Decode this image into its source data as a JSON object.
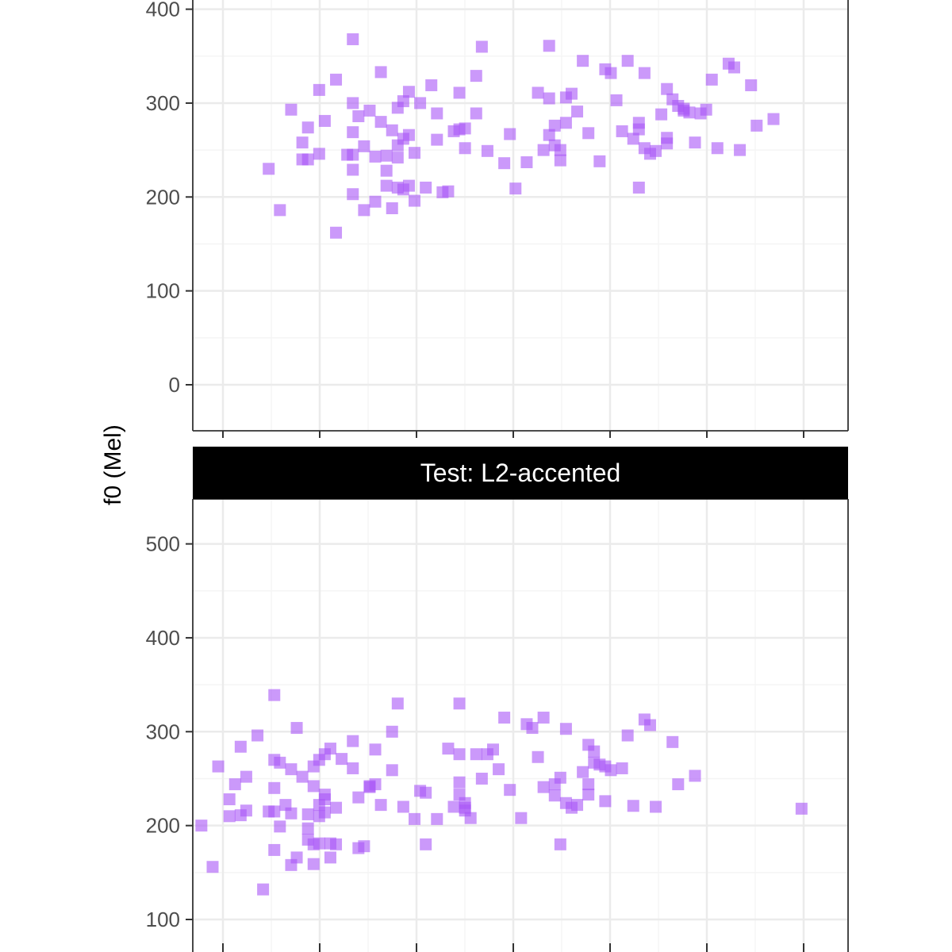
{
  "colors": {
    "point": "#a855f7",
    "strip_bg": "#000000",
    "strip_text": "#ffffff",
    "grid_major": "#ebebeb",
    "grid_minor": "#f5f5f5",
    "panel_border": "#333333",
    "tick_text": "#4d4d4d"
  },
  "chart_data": {
    "type": "scatter",
    "ylabel": "f0 (Mel)",
    "marker": "square",
    "grid": true,
    "facets": [
      {
        "name": "",
        "ylim": [
          -50,
          410
        ],
        "yticks": [
          0,
          100,
          200,
          300,
          400
        ],
        "x_gridlines": 7,
        "points": [
          [
            0.1,
            230
          ],
          [
            0.12,
            186
          ],
          [
            0.14,
            293
          ],
          [
            0.16,
            258
          ],
          [
            0.16,
            240
          ],
          [
            0.17,
            274
          ],
          [
            0.17,
            240
          ],
          [
            0.19,
            314
          ],
          [
            0.19,
            246
          ],
          [
            0.2,
            281
          ],
          [
            0.22,
            325
          ],
          [
            0.22,
            162
          ],
          [
            0.24,
            245
          ],
          [
            0.25,
            368
          ],
          [
            0.25,
            245
          ],
          [
            0.25,
            229
          ],
          [
            0.25,
            203
          ],
          [
            0.25,
            269
          ],
          [
            0.25,
            300
          ],
          [
            0.26,
            286
          ],
          [
            0.27,
            254
          ],
          [
            0.27,
            186
          ],
          [
            0.28,
            292
          ],
          [
            0.29,
            243
          ],
          [
            0.29,
            195
          ],
          [
            0.3,
            333
          ],
          [
            0.3,
            280
          ],
          [
            0.31,
            228
          ],
          [
            0.31,
            212
          ],
          [
            0.31,
            244
          ],
          [
            0.32,
            271
          ],
          [
            0.32,
            188
          ],
          [
            0.33,
            295
          ],
          [
            0.33,
            242
          ],
          [
            0.33,
            255
          ],
          [
            0.33,
            210
          ],
          [
            0.34,
            302
          ],
          [
            0.34,
            208
          ],
          [
            0.34,
            262
          ],
          [
            0.35,
            312
          ],
          [
            0.35,
            266
          ],
          [
            0.35,
            212
          ],
          [
            0.36,
            247
          ],
          [
            0.36,
            196
          ],
          [
            0.37,
            300
          ],
          [
            0.38,
            210
          ],
          [
            0.39,
            319
          ],
          [
            0.4,
            289
          ],
          [
            0.4,
            261
          ],
          [
            0.41,
            205
          ],
          [
            0.42,
            206
          ],
          [
            0.43,
            270
          ],
          [
            0.44,
            272
          ],
          [
            0.44,
            311
          ],
          [
            0.45,
            273
          ],
          [
            0.45,
            252
          ],
          [
            0.47,
            329
          ],
          [
            0.47,
            289
          ],
          [
            0.48,
            360
          ],
          [
            0.49,
            249
          ],
          [
            0.52,
            236
          ],
          [
            0.53,
            267
          ],
          [
            0.54,
            209
          ],
          [
            0.56,
            237
          ],
          [
            0.58,
            311
          ],
          [
            0.59,
            250
          ],
          [
            0.6,
            361
          ],
          [
            0.6,
            305
          ],
          [
            0.6,
            266
          ],
          [
            0.61,
            276
          ],
          [
            0.61,
            255
          ],
          [
            0.62,
            239
          ],
          [
            0.62,
            250
          ],
          [
            0.63,
            279
          ],
          [
            0.63,
            306
          ],
          [
            0.64,
            310
          ],
          [
            0.65,
            291
          ],
          [
            0.66,
            345
          ],
          [
            0.67,
            268
          ],
          [
            0.69,
            238
          ],
          [
            0.7,
            336
          ],
          [
            0.71,
            332
          ],
          [
            0.72,
            303
          ],
          [
            0.73,
            270
          ],
          [
            0.74,
            345
          ],
          [
            0.75,
            262
          ],
          [
            0.76,
            272
          ],
          [
            0.76,
            210
          ],
          [
            0.76,
            279
          ],
          [
            0.77,
            332
          ],
          [
            0.77,
            252
          ],
          [
            0.78,
            246
          ],
          [
            0.79,
            249
          ],
          [
            0.8,
            288
          ],
          [
            0.81,
            257
          ],
          [
            0.81,
            263
          ],
          [
            0.81,
            315
          ],
          [
            0.82,
            304
          ],
          [
            0.83,
            297
          ],
          [
            0.84,
            292
          ],
          [
            0.84,
            294
          ],
          [
            0.85,
            290
          ],
          [
            0.86,
            258
          ],
          [
            0.87,
            289
          ],
          [
            0.88,
            293
          ],
          [
            0.89,
            325
          ],
          [
            0.9,
            252
          ],
          [
            0.92,
            342
          ],
          [
            0.93,
            338
          ],
          [
            0.94,
            250
          ],
          [
            0.96,
            319
          ],
          [
            0.97,
            276
          ],
          [
            1.0,
            283
          ]
        ]
      },
      {
        "name": "Test: L2-accented",
        "ylim": [
          93,
          520
        ],
        "yticks": [
          100,
          200,
          300,
          400,
          500
        ],
        "x_gridlines": 7,
        "points": [
          [
            -0.02,
            200
          ],
          [
            0.0,
            156
          ],
          [
            0.01,
            263
          ],
          [
            0.03,
            228
          ],
          [
            0.03,
            210
          ],
          [
            0.04,
            244
          ],
          [
            0.05,
            211
          ],
          [
            0.05,
            284
          ],
          [
            0.06,
            216
          ],
          [
            0.06,
            252
          ],
          [
            0.08,
            296
          ],
          [
            0.09,
            132
          ],
          [
            0.1,
            215
          ],
          [
            0.11,
            240
          ],
          [
            0.11,
            339
          ],
          [
            0.11,
            215
          ],
          [
            0.11,
            174
          ],
          [
            0.11,
            270
          ],
          [
            0.12,
            199
          ],
          [
            0.12,
            267
          ],
          [
            0.13,
            222
          ],
          [
            0.14,
            213
          ],
          [
            0.14,
            158
          ],
          [
            0.14,
            260
          ],
          [
            0.15,
            166
          ],
          [
            0.15,
            304
          ],
          [
            0.16,
            252
          ],
          [
            0.17,
            197
          ],
          [
            0.17,
            185
          ],
          [
            0.17,
            212
          ],
          [
            0.18,
            242
          ],
          [
            0.18,
            159
          ],
          [
            0.18,
            263
          ],
          [
            0.18,
            180
          ],
          [
            0.19,
            222
          ],
          [
            0.19,
            181
          ],
          [
            0.19,
            210
          ],
          [
            0.19,
            270
          ],
          [
            0.2,
            233
          ],
          [
            0.2,
            276
          ],
          [
            0.2,
            214
          ],
          [
            0.2,
            228
          ],
          [
            0.21,
            282
          ],
          [
            0.21,
            181
          ],
          [
            0.21,
            166
          ],
          [
            0.22,
            219
          ],
          [
            0.22,
            180
          ],
          [
            0.23,
            271
          ],
          [
            0.25,
            290
          ],
          [
            0.25,
            261
          ],
          [
            0.26,
            230
          ],
          [
            0.26,
            176
          ],
          [
            0.27,
            178
          ],
          [
            0.28,
            242
          ],
          [
            0.28,
            241
          ],
          [
            0.29,
            281
          ],
          [
            0.29,
            244
          ],
          [
            0.3,
            222
          ],
          [
            0.32,
            300
          ],
          [
            0.32,
            259
          ],
          [
            0.33,
            330
          ],
          [
            0.34,
            220
          ],
          [
            0.36,
            207
          ],
          [
            0.37,
            237
          ],
          [
            0.38,
            235
          ],
          [
            0.38,
            180
          ],
          [
            0.4,
            207
          ],
          [
            0.42,
            282
          ],
          [
            0.43,
            220
          ],
          [
            0.44,
            330
          ],
          [
            0.44,
            276
          ],
          [
            0.44,
            246
          ],
          [
            0.44,
            233
          ],
          [
            0.45,
            224
          ],
          [
            0.45,
            219
          ],
          [
            0.45,
            216
          ],
          [
            0.46,
            208
          ],
          [
            0.47,
            276
          ],
          [
            0.48,
            250
          ],
          [
            0.49,
            276
          ],
          [
            0.5,
            281
          ],
          [
            0.51,
            260
          ],
          [
            0.52,
            315
          ],
          [
            0.53,
            238
          ],
          [
            0.55,
            208
          ],
          [
            0.56,
            308
          ],
          [
            0.57,
            304
          ],
          [
            0.58,
            273
          ],
          [
            0.59,
            315
          ],
          [
            0.59,
            241
          ],
          [
            0.61,
            232
          ],
          [
            0.61,
            244
          ],
          [
            0.62,
            180
          ],
          [
            0.62,
            251
          ],
          [
            0.63,
            303
          ],
          [
            0.63,
            224
          ],
          [
            0.64,
            219
          ],
          [
            0.65,
            222
          ],
          [
            0.66,
            257
          ],
          [
            0.67,
            286
          ],
          [
            0.67,
            233
          ],
          [
            0.67,
            244
          ],
          [
            0.68,
            267
          ],
          [
            0.68,
            279
          ],
          [
            0.69,
            265
          ],
          [
            0.7,
            263
          ],
          [
            0.7,
            226
          ],
          [
            0.71,
            259
          ],
          [
            0.73,
            261
          ],
          [
            0.74,
            296
          ],
          [
            0.75,
            221
          ],
          [
            0.77,
            313
          ],
          [
            0.78,
            307
          ],
          [
            0.79,
            220
          ],
          [
            0.82,
            289
          ],
          [
            0.83,
            244
          ],
          [
            0.86,
            253
          ],
          [
            1.05,
            218
          ]
        ]
      }
    ]
  }
}
